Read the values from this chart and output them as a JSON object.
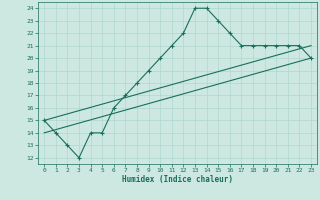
{
  "xlabel": "Humidex (Indice chaleur)",
  "xlim": [
    -0.5,
    23.5
  ],
  "ylim": [
    11.5,
    24.5
  ],
  "xticks": [
    0,
    1,
    2,
    3,
    4,
    5,
    6,
    7,
    8,
    9,
    10,
    11,
    12,
    13,
    14,
    15,
    16,
    17,
    18,
    19,
    20,
    21,
    22,
    23
  ],
  "yticks": [
    12,
    13,
    14,
    15,
    16,
    17,
    18,
    19,
    20,
    21,
    22,
    23,
    24
  ],
  "bg_color": "#cce8e0",
  "grid_color": "#b0d8ce",
  "line_color": "#1a6e5e",
  "line1_x": [
    0,
    1,
    2,
    3,
    4,
    5,
    6,
    7,
    8,
    9,
    10,
    11,
    12,
    13,
    14,
    15,
    16,
    17,
    18,
    19,
    20,
    21,
    22,
    23
  ],
  "line1_y": [
    15,
    14,
    13,
    12,
    14,
    14,
    16,
    17,
    18,
    19,
    20,
    21,
    22,
    24,
    24,
    23,
    22,
    21,
    21,
    21,
    21,
    21,
    21,
    20
  ],
  "line2_x": [
    0,
    23
  ],
  "line2_y": [
    14,
    20
  ],
  "line3_x": [
    0,
    23
  ],
  "line3_y": [
    15,
    21
  ],
  "marker": "+"
}
